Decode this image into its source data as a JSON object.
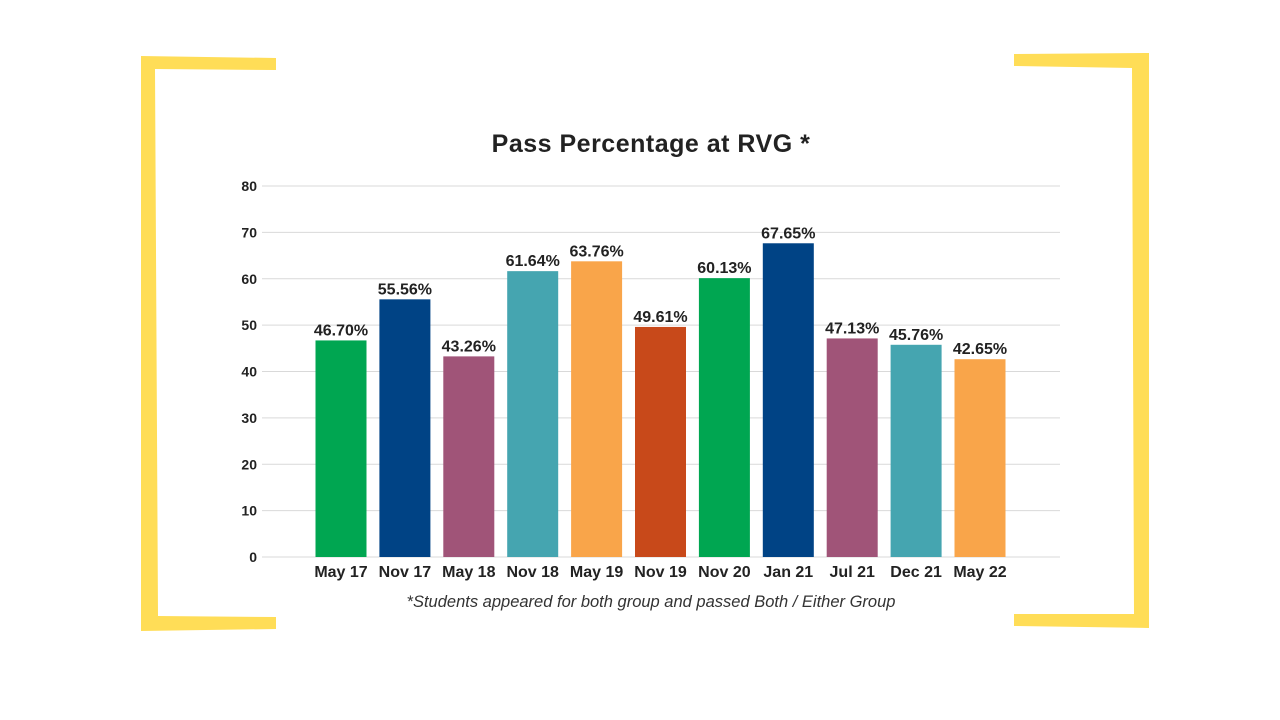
{
  "chart_data": {
    "type": "bar",
    "title": "Pass Percentage at RVG *",
    "xlabel": "",
    "ylabel": "",
    "ylim": [
      0,
      80
    ],
    "yticks": [
      0,
      10,
      20,
      30,
      40,
      50,
      60,
      70,
      80
    ],
    "grid": true,
    "categories": [
      "May 17",
      "Nov 17",
      "May 18",
      "Nov 18",
      "May 19",
      "Nov 19",
      "Nov 20",
      "Jan 21",
      "Jul 21",
      "Dec 21",
      "May 22"
    ],
    "values": [
      46.7,
      55.56,
      43.26,
      61.64,
      63.76,
      49.61,
      60.13,
      67.65,
      47.13,
      45.76,
      42.65
    ],
    "data_labels": [
      "46.70%",
      "55.56%",
      "43.26%",
      "61.64%",
      "63.76%",
      "49.61%",
      "60.13%",
      "67.65%",
      "47.13%",
      "45.76%",
      "42.65%"
    ],
    "bar_colors": [
      "#00a651",
      "#004385",
      "#a05478",
      "#45a5b0",
      "#f9a54a",
      "#c8491a",
      "#00a651",
      "#004385",
      "#a05478",
      "#45a5b0",
      "#f9a54a"
    ],
    "footnote": "*Students appeared for both group and passed Both / Either Group"
  },
  "frame_color": "#ffdd57"
}
